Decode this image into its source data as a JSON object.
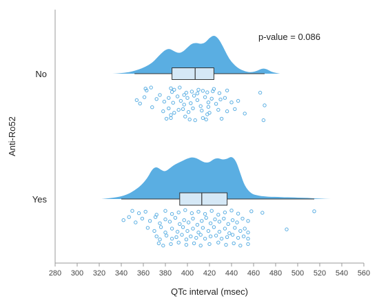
{
  "chart_data": {
    "type": "raincloud",
    "orientation": "horizontal",
    "xlabel": "QTc interval (msec)",
    "ylabel": "Anti-Ro52",
    "xlim": [
      280,
      560
    ],
    "xticks": [
      280,
      300,
      320,
      340,
      360,
      380,
      400,
      420,
      440,
      460,
      480,
      500,
      520,
      540,
      560
    ],
    "categories": [
      "No",
      "Yes"
    ],
    "annotation": "p-value = 0.086",
    "color": "#5aaee2",
    "groups": [
      {
        "name": "No",
        "box": {
          "whisker_low": 352,
          "q1": 386,
          "median": 407,
          "q3": 424,
          "whisker_high": 470
        },
        "density": {
          "x": [
            332,
            345,
            355,
            362,
            368,
            372,
            376,
            380,
            384,
            388,
            392,
            396,
            400,
            404,
            408,
            412,
            416,
            420,
            424,
            428,
            432,
            436,
            440,
            446,
            452,
            458,
            464,
            468,
            472,
            476,
            480,
            484
          ],
          "density": [
            0.0,
            0.02,
            0.1,
            0.18,
            0.28,
            0.4,
            0.52,
            0.62,
            0.65,
            0.58,
            0.53,
            0.57,
            0.68,
            0.78,
            0.8,
            0.77,
            0.8,
            0.93,
            1.0,
            0.92,
            0.72,
            0.48,
            0.3,
            0.14,
            0.06,
            0.03,
            0.08,
            0.14,
            0.12,
            0.05,
            0.02,
            0.0
          ]
        },
        "points": [
          [
            362,
            0.05
          ],
          [
            367,
            0.02
          ],
          [
            363,
            0.1
          ],
          [
            385,
            0.04
          ],
          [
            388,
            0.08
          ],
          [
            393,
            0.02
          ],
          [
            386,
            0.14
          ],
          [
            399,
            0.16
          ],
          [
            404,
            0.13
          ],
          [
            409,
            0.18
          ],
          [
            414,
            0.11
          ],
          [
            418,
            0.15
          ],
          [
            423,
            0.12
          ],
          [
            429,
            0.17
          ],
          [
            436,
            0.1
          ],
          [
            410,
            0.08
          ],
          [
            424,
            0.06
          ],
          [
            354,
            0.36
          ],
          [
            361,
            0.28
          ],
          [
            372,
            0.33
          ],
          [
            375,
            0.22
          ],
          [
            379,
            0.4
          ],
          [
            383,
            0.3
          ],
          [
            387,
            0.43
          ],
          [
            391,
            0.26
          ],
          [
            394,
            0.38
          ],
          [
            397,
            0.48
          ],
          [
            400,
            0.3
          ],
          [
            403,
            0.44
          ],
          [
            406,
            0.24
          ],
          [
            409,
            0.36
          ],
          [
            412,
            0.52
          ],
          [
            416,
            0.28
          ],
          [
            419,
            0.42
          ],
          [
            422,
            0.32
          ],
          [
            426,
            0.46
          ],
          [
            430,
            0.34
          ],
          [
            434,
            0.3
          ],
          [
            440,
            0.42
          ],
          [
            446,
            0.38
          ],
          [
            397,
            0.22
          ],
          [
            419,
            0.54
          ],
          [
            357,
            0.45
          ],
          [
            368,
            0.55
          ],
          [
            378,
            0.66
          ],
          [
            383,
            0.58
          ],
          [
            388,
            0.7
          ],
          [
            392,
            0.62
          ],
          [
            396,
            0.6
          ],
          [
            401,
            0.68
          ],
          [
            405,
            0.58
          ],
          [
            413,
            0.64
          ],
          [
            420,
            0.7
          ],
          [
            428,
            0.62
          ],
          [
            436,
            0.66
          ],
          [
            443,
            0.6
          ],
          [
            452,
            0.72
          ],
          [
            381,
            0.86
          ],
          [
            385,
            0.84
          ],
          [
            398,
            0.8
          ],
          [
            402,
            0.88
          ],
          [
            407,
            0.9
          ],
          [
            414,
            0.84
          ],
          [
            417,
            0.88
          ],
          [
            431,
            0.86
          ],
          [
            385,
            0.76
          ],
          [
            418,
            0.74
          ],
          [
            466,
            0.16
          ],
          [
            470,
            0.5
          ],
          [
            469,
            0.9
          ]
        ]
      },
      {
        "name": "Yes",
        "box": {
          "whisker_low": 340,
          "q1": 393,
          "median": 413,
          "q3": 436,
          "whisker_high": 515
        },
        "density": {
          "x": [
            322,
            335,
            345,
            352,
            358,
            364,
            368,
            372,
            376,
            380,
            384,
            388,
            392,
            396,
            400,
            404,
            408,
            412,
            416,
            420,
            424,
            428,
            432,
            436,
            440,
            444,
            448,
            452,
            458,
            464,
            470,
            476,
            482,
            488,
            494,
            500,
            506,
            512,
            520,
            530
          ],
          "density": [
            0.0,
            0.03,
            0.1,
            0.2,
            0.32,
            0.5,
            0.7,
            0.76,
            0.68,
            0.64,
            0.72,
            0.8,
            0.85,
            0.9,
            0.95,
            0.98,
            0.96,
            0.9,
            0.85,
            0.86,
            0.94,
            0.96,
            0.92,
            0.94,
            1.0,
            0.9,
            0.6,
            0.3,
            0.12,
            0.08,
            0.06,
            0.05,
            0.05,
            0.04,
            0.04,
            0.03,
            0.03,
            0.02,
            0.01,
            0.0
          ]
        },
        "points": [
          [
            350,
            0.04
          ],
          [
            356,
            0.1
          ],
          [
            362,
            0.06
          ],
          [
            372,
            0.14
          ],
          [
            380,
            0.04
          ],
          [
            386,
            0.12
          ],
          [
            392,
            0.08
          ],
          [
            398,
            0.02
          ],
          [
            404,
            0.1
          ],
          [
            410,
            0.06
          ],
          [
            416,
            0.12
          ],
          [
            422,
            0.04
          ],
          [
            428,
            0.14
          ],
          [
            434,
            0.08
          ],
          [
            440,
            0.03
          ],
          [
            446,
            0.11
          ],
          [
            458,
            0.05
          ],
          [
            468,
            0.09
          ],
          [
            515,
            0.05
          ],
          [
            342,
            0.28
          ],
          [
            347,
            0.2
          ],
          [
            353,
            0.34
          ],
          [
            359,
            0.24
          ],
          [
            366,
            0.3
          ],
          [
            371,
            0.2
          ],
          [
            375,
            0.36
          ],
          [
            380,
            0.26
          ],
          [
            384,
            0.32
          ],
          [
            389,
            0.22
          ],
          [
            393,
            0.38
          ],
          [
            397,
            0.28
          ],
          [
            401,
            0.34
          ],
          [
            405,
            0.24
          ],
          [
            409,
            0.4
          ],
          [
            413,
            0.3
          ],
          [
            417,
            0.22
          ],
          [
            421,
            0.36
          ],
          [
            425,
            0.26
          ],
          [
            429,
            0.32
          ],
          [
            433,
            0.24
          ],
          [
            437,
            0.38
          ],
          [
            441,
            0.28
          ],
          [
            445,
            0.34
          ],
          [
            450,
            0.24
          ],
          [
            455,
            0.3
          ],
          [
            364,
            0.48
          ],
          [
            370,
            0.56
          ],
          [
            376,
            0.46
          ],
          [
            380,
            0.6
          ],
          [
            386,
            0.5
          ],
          [
            391,
            0.58
          ],
          [
            396,
            0.46
          ],
          [
            400,
            0.56
          ],
          [
            405,
            0.5
          ],
          [
            410,
            0.6
          ],
          [
            414,
            0.48
          ],
          [
            419,
            0.56
          ],
          [
            424,
            0.46
          ],
          [
            429,
            0.58
          ],
          [
            434,
            0.5
          ],
          [
            438,
            0.62
          ],
          [
            443,
            0.48
          ],
          [
            448,
            0.56
          ],
          [
            452,
            0.5
          ],
          [
            455,
            0.6
          ],
          [
            490,
            0.52
          ],
          [
            372,
            0.7
          ],
          [
            375,
            0.78
          ],
          [
            381,
            0.68
          ],
          [
            386,
            0.76
          ],
          [
            390,
            0.72
          ],
          [
            395,
            0.66
          ],
          [
            399,
            0.78
          ],
          [
            403,
            0.7
          ],
          [
            408,
            0.74
          ],
          [
            412,
            0.66
          ],
          [
            416,
            0.76
          ],
          [
            421,
            0.7
          ],
          [
            426,
            0.68
          ],
          [
            431,
            0.76
          ],
          [
            436,
            0.72
          ],
          [
            441,
            0.66
          ],
          [
            446,
            0.74
          ],
          [
            451,
            0.7
          ],
          [
            455,
            0.76
          ],
          [
            374,
            0.88
          ],
          [
            378,
            0.94
          ],
          [
            385,
            0.9
          ],
          [
            392,
            0.86
          ],
          [
            399,
            0.92
          ],
          [
            406,
            0.88
          ],
          [
            412,
            0.94
          ],
          [
            420,
            0.9
          ],
          [
            428,
            0.86
          ],
          [
            435,
            0.92
          ],
          [
            442,
            0.88
          ],
          [
            448,
            0.94
          ],
          [
            455,
            0.9
          ]
        ]
      }
    ]
  }
}
